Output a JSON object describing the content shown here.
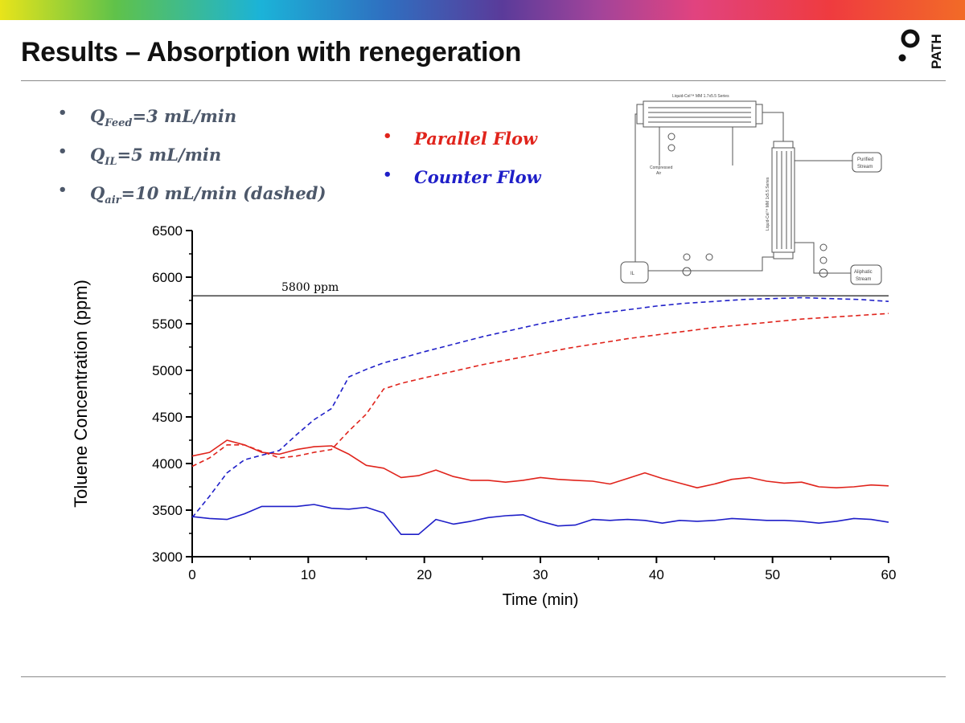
{
  "slide": {
    "title": "Results – Absorption with renegeration",
    "logo_text": "PATH"
  },
  "bullets": [
    {
      "symbol": "Q",
      "sub": "Feed",
      "value": "=3 mL/min"
    },
    {
      "symbol": "Q",
      "sub": "IL",
      "value": "=5 mL/min"
    },
    {
      "symbol": "Q",
      "sub": "air",
      "value": "=10 mL/min (dashed)"
    }
  ],
  "legend": [
    {
      "label": "Parallel Flow",
      "color": "#e0241c"
    },
    {
      "label": "Counter Flow",
      "color": "#1f1fc8"
    }
  ],
  "colors": {
    "parallel": "#e0241c",
    "counter": "#1f1fc8",
    "bullet_text": "#4d586a"
  },
  "diagram": {
    "module_top": "Liquid-Cel™ MM 1.7x5.5 Series",
    "module_side": "Liquid-Cel™ MM 1x5.5 Series",
    "compressed_air": [
      "Compressed",
      "Air"
    ],
    "purified": [
      "Purified",
      "Stream"
    ],
    "aliphatic": [
      "Aliphatic",
      "Stream"
    ],
    "il_tank": "IL",
    "pump": "pump"
  },
  "chart_data": {
    "type": "line",
    "title": "",
    "xlabel": "Time (min)",
    "ylabel": "Toluene Concentration (ppm)",
    "xlim": [
      0,
      60
    ],
    "ylim": [
      3000,
      6500
    ],
    "xticks": [
      0,
      10,
      20,
      30,
      40,
      50,
      60
    ],
    "yticks": [
      3000,
      3500,
      4000,
      4500,
      5000,
      5500,
      6000,
      6500
    ],
    "reference_line": {
      "value": 5800,
      "label": "5800 ppm"
    },
    "series": [
      {
        "name": "Parallel Flow (solid)",
        "color": "#e0241c",
        "dashed": false,
        "x": [
          0,
          1.5,
          3,
          4.5,
          6,
          7.5,
          9,
          10.5,
          12,
          13.5,
          15,
          16.5,
          18,
          19.5,
          21,
          22.5,
          24,
          25.5,
          27,
          28.5,
          30,
          31.5,
          33,
          34.5,
          36,
          37.5,
          39,
          40.5,
          42,
          43.5,
          45,
          46.5,
          48,
          49.5,
          51,
          52.5,
          54,
          55.5,
          57,
          58.5,
          60
        ],
        "y": [
          4080,
          4120,
          4250,
          4200,
          4120,
          4100,
          4150,
          4180,
          4190,
          4100,
          3980,
          3950,
          3850,
          3870,
          3930,
          3860,
          3820,
          3820,
          3800,
          3820,
          3850,
          3830,
          3820,
          3810,
          3780,
          3840,
          3900,
          3840,
          3790,
          3740,
          3780,
          3830,
          3850,
          3810,
          3790,
          3800,
          3750,
          3740,
          3750,
          3770,
          3760
        ]
      },
      {
        "name": "Counter Flow (solid)",
        "color": "#1f1fc8",
        "dashed": false,
        "x": [
          0,
          1.5,
          3,
          4.5,
          6,
          7.5,
          9,
          10.5,
          12,
          13.5,
          15,
          16.5,
          18,
          19.5,
          21,
          22.5,
          24,
          25.5,
          27,
          28.5,
          30,
          31.5,
          33,
          34.5,
          36,
          37.5,
          39,
          40.5,
          42,
          43.5,
          45,
          46.5,
          48,
          49.5,
          51,
          52.5,
          54,
          55.5,
          57,
          58.5,
          60
        ],
        "y": [
          3430,
          3410,
          3400,
          3460,
          3540,
          3540,
          3540,
          3560,
          3520,
          3510,
          3530,
          3470,
          3240,
          3240,
          3400,
          3350,
          3380,
          3420,
          3440,
          3450,
          3380,
          3330,
          3340,
          3400,
          3390,
          3400,
          3390,
          3360,
          3390,
          3380,
          3390,
          3410,
          3400,
          3390,
          3390,
          3380,
          3360,
          3380,
          3410,
          3400,
          3370
        ]
      },
      {
        "name": "Parallel Flow (dashed)",
        "color": "#e0241c",
        "dashed": true,
        "x": [
          0,
          1.5,
          3,
          4.5,
          6,
          7.5,
          9,
          10.5,
          12,
          13.5,
          15,
          16.5,
          18,
          20,
          22.5,
          25,
          27.5,
          30,
          32.5,
          35,
          37.5,
          40,
          42.5,
          45,
          47.5,
          50,
          52.5,
          55,
          57.5,
          60
        ],
        "y": [
          3970,
          4060,
          4200,
          4200,
          4130,
          4060,
          4080,
          4120,
          4150,
          4350,
          4530,
          4800,
          4860,
          4920,
          4990,
          5060,
          5120,
          5180,
          5240,
          5290,
          5340,
          5380,
          5420,
          5460,
          5490,
          5520,
          5550,
          5570,
          5590,
          5610
        ]
      },
      {
        "name": "Counter Flow (dashed)",
        "color": "#1f1fc8",
        "dashed": true,
        "x": [
          0,
          1.5,
          3,
          4.5,
          6,
          7.5,
          9,
          10.5,
          12,
          13.5,
          15,
          16.5,
          18,
          20,
          22.5,
          25,
          27.5,
          30,
          32.5,
          35,
          37.5,
          40,
          42.5,
          45,
          47.5,
          50,
          52.5,
          55,
          57.5,
          60
        ],
        "y": [
          3420,
          3650,
          3900,
          4040,
          4090,
          4140,
          4310,
          4470,
          4590,
          4930,
          5010,
          5080,
          5130,
          5200,
          5280,
          5360,
          5430,
          5500,
          5560,
          5610,
          5650,
          5690,
          5720,
          5740,
          5760,
          5770,
          5780,
          5770,
          5760,
          5740
        ]
      }
    ]
  }
}
